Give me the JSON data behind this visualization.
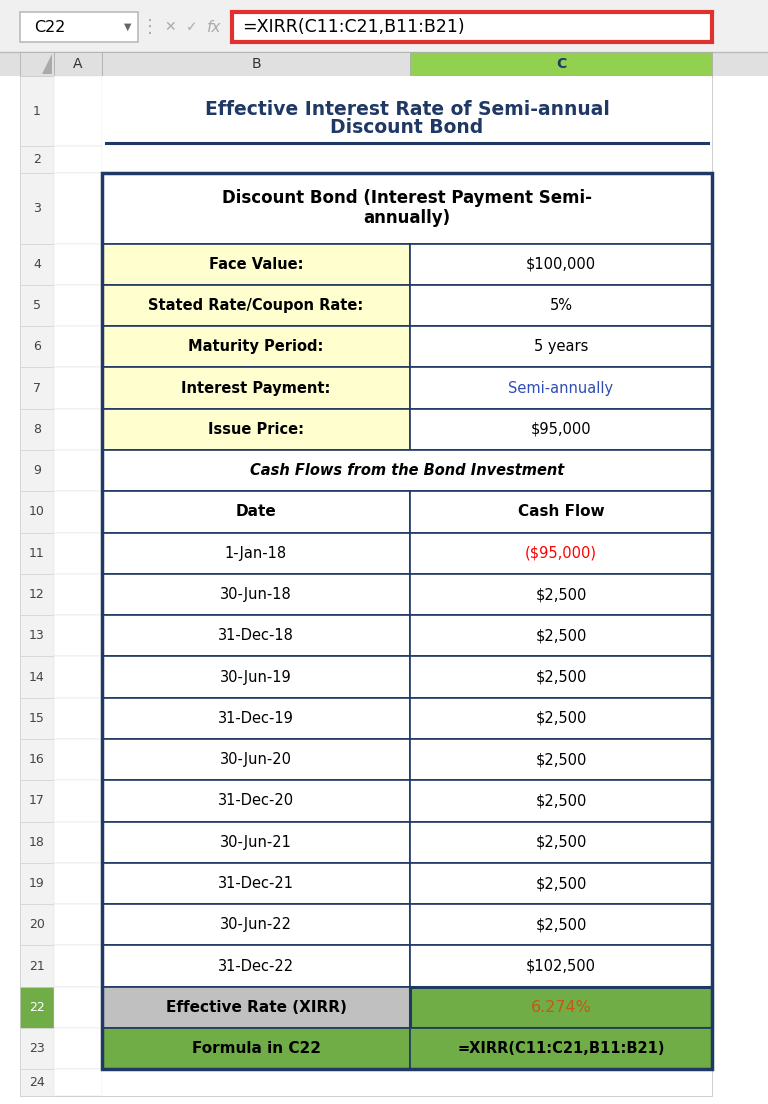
{
  "title_line1": "Effective Interest Rate of Semi-annual",
  "title_line2": "Discount Bond",
  "formula_bar_cell": "C22",
  "formula_bar_text": "=XIRR(C11:C21,B11:B21)",
  "header_row3_line1": "Discount Bond (Interest Payment Semi-",
  "header_row3_line2": "annually)",
  "info_rows": [
    {
      "label": "Face Value:",
      "value": "$100,000",
      "bg": "#FEFECE",
      "value_color": "#000000"
    },
    {
      "label": "Stated Rate/Coupon Rate:",
      "value": "5%",
      "bg": "#FEFECE",
      "value_color": "#000000"
    },
    {
      "label": "Maturity Period:",
      "value": "5 years",
      "bg": "#FEFECE",
      "value_color": "#000000"
    },
    {
      "label": "Interest Payment:",
      "value": "Semi-annually",
      "bg": "#FEFECE",
      "value_color": "#2E4DB5"
    },
    {
      "label": "Issue Price:",
      "value": "$95,000",
      "bg": "#FEFECE",
      "value_color": "#000000"
    }
  ],
  "row9_text": "Cash Flows from the Bond Investment",
  "col_headers": [
    "Date",
    "Cash Flow"
  ],
  "cash_flow_rows": [
    {
      "date": "1-Jan-18",
      "cash_flow": "($95,000)",
      "cf_color": "#FF0000"
    },
    {
      "date": "30-Jun-18",
      "cash_flow": "$2,500",
      "cf_color": "#000000"
    },
    {
      "date": "31-Dec-18",
      "cash_flow": "$2,500",
      "cf_color": "#000000"
    },
    {
      "date": "30-Jun-19",
      "cash_flow": "$2,500",
      "cf_color": "#000000"
    },
    {
      "date": "31-Dec-19",
      "cash_flow": "$2,500",
      "cf_color": "#000000"
    },
    {
      "date": "30-Jun-20",
      "cash_flow": "$2,500",
      "cf_color": "#000000"
    },
    {
      "date": "31-Dec-20",
      "cash_flow": "$2,500",
      "cf_color": "#000000"
    },
    {
      "date": "30-Jun-21",
      "cash_flow": "$2,500",
      "cf_color": "#000000"
    },
    {
      "date": "31-Dec-21",
      "cash_flow": "$2,500",
      "cf_color": "#000000"
    },
    {
      "date": "30-Jun-22",
      "cash_flow": "$2,500",
      "cf_color": "#000000"
    },
    {
      "date": "31-Dec-22",
      "cash_flow": "$102,500",
      "cf_color": "#000000"
    }
  ],
  "row22_label": "Effective Rate (XIRR)",
  "row22_value": "6.274%",
  "row22_value_color": "#C65911",
  "row22_label_bg": "#C0C0C0",
  "row22_value_bg": "#70AD47",
  "row23_label": "Formula in C22",
  "row23_value": "=XIRR(C11:C21,B11:B21)",
  "row23_bg": "#70AD47",
  "bg_color": "#FFFFFF",
  "border_color": "#1F3864",
  "title_color": "#1F3864",
  "formula_bar_border": "#E03030",
  "row_num_active_bg": "#70AD47",
  "row_num_active_fg": "#FFFFFF",
  "col_C_header_bg": "#92D050",
  "col_C_header_fg": "#1F3864",
  "topbar_bg": "#F0F0F0",
  "namebox_bg": "#FFFFFF",
  "colheader_bg": "#E0E0E0"
}
